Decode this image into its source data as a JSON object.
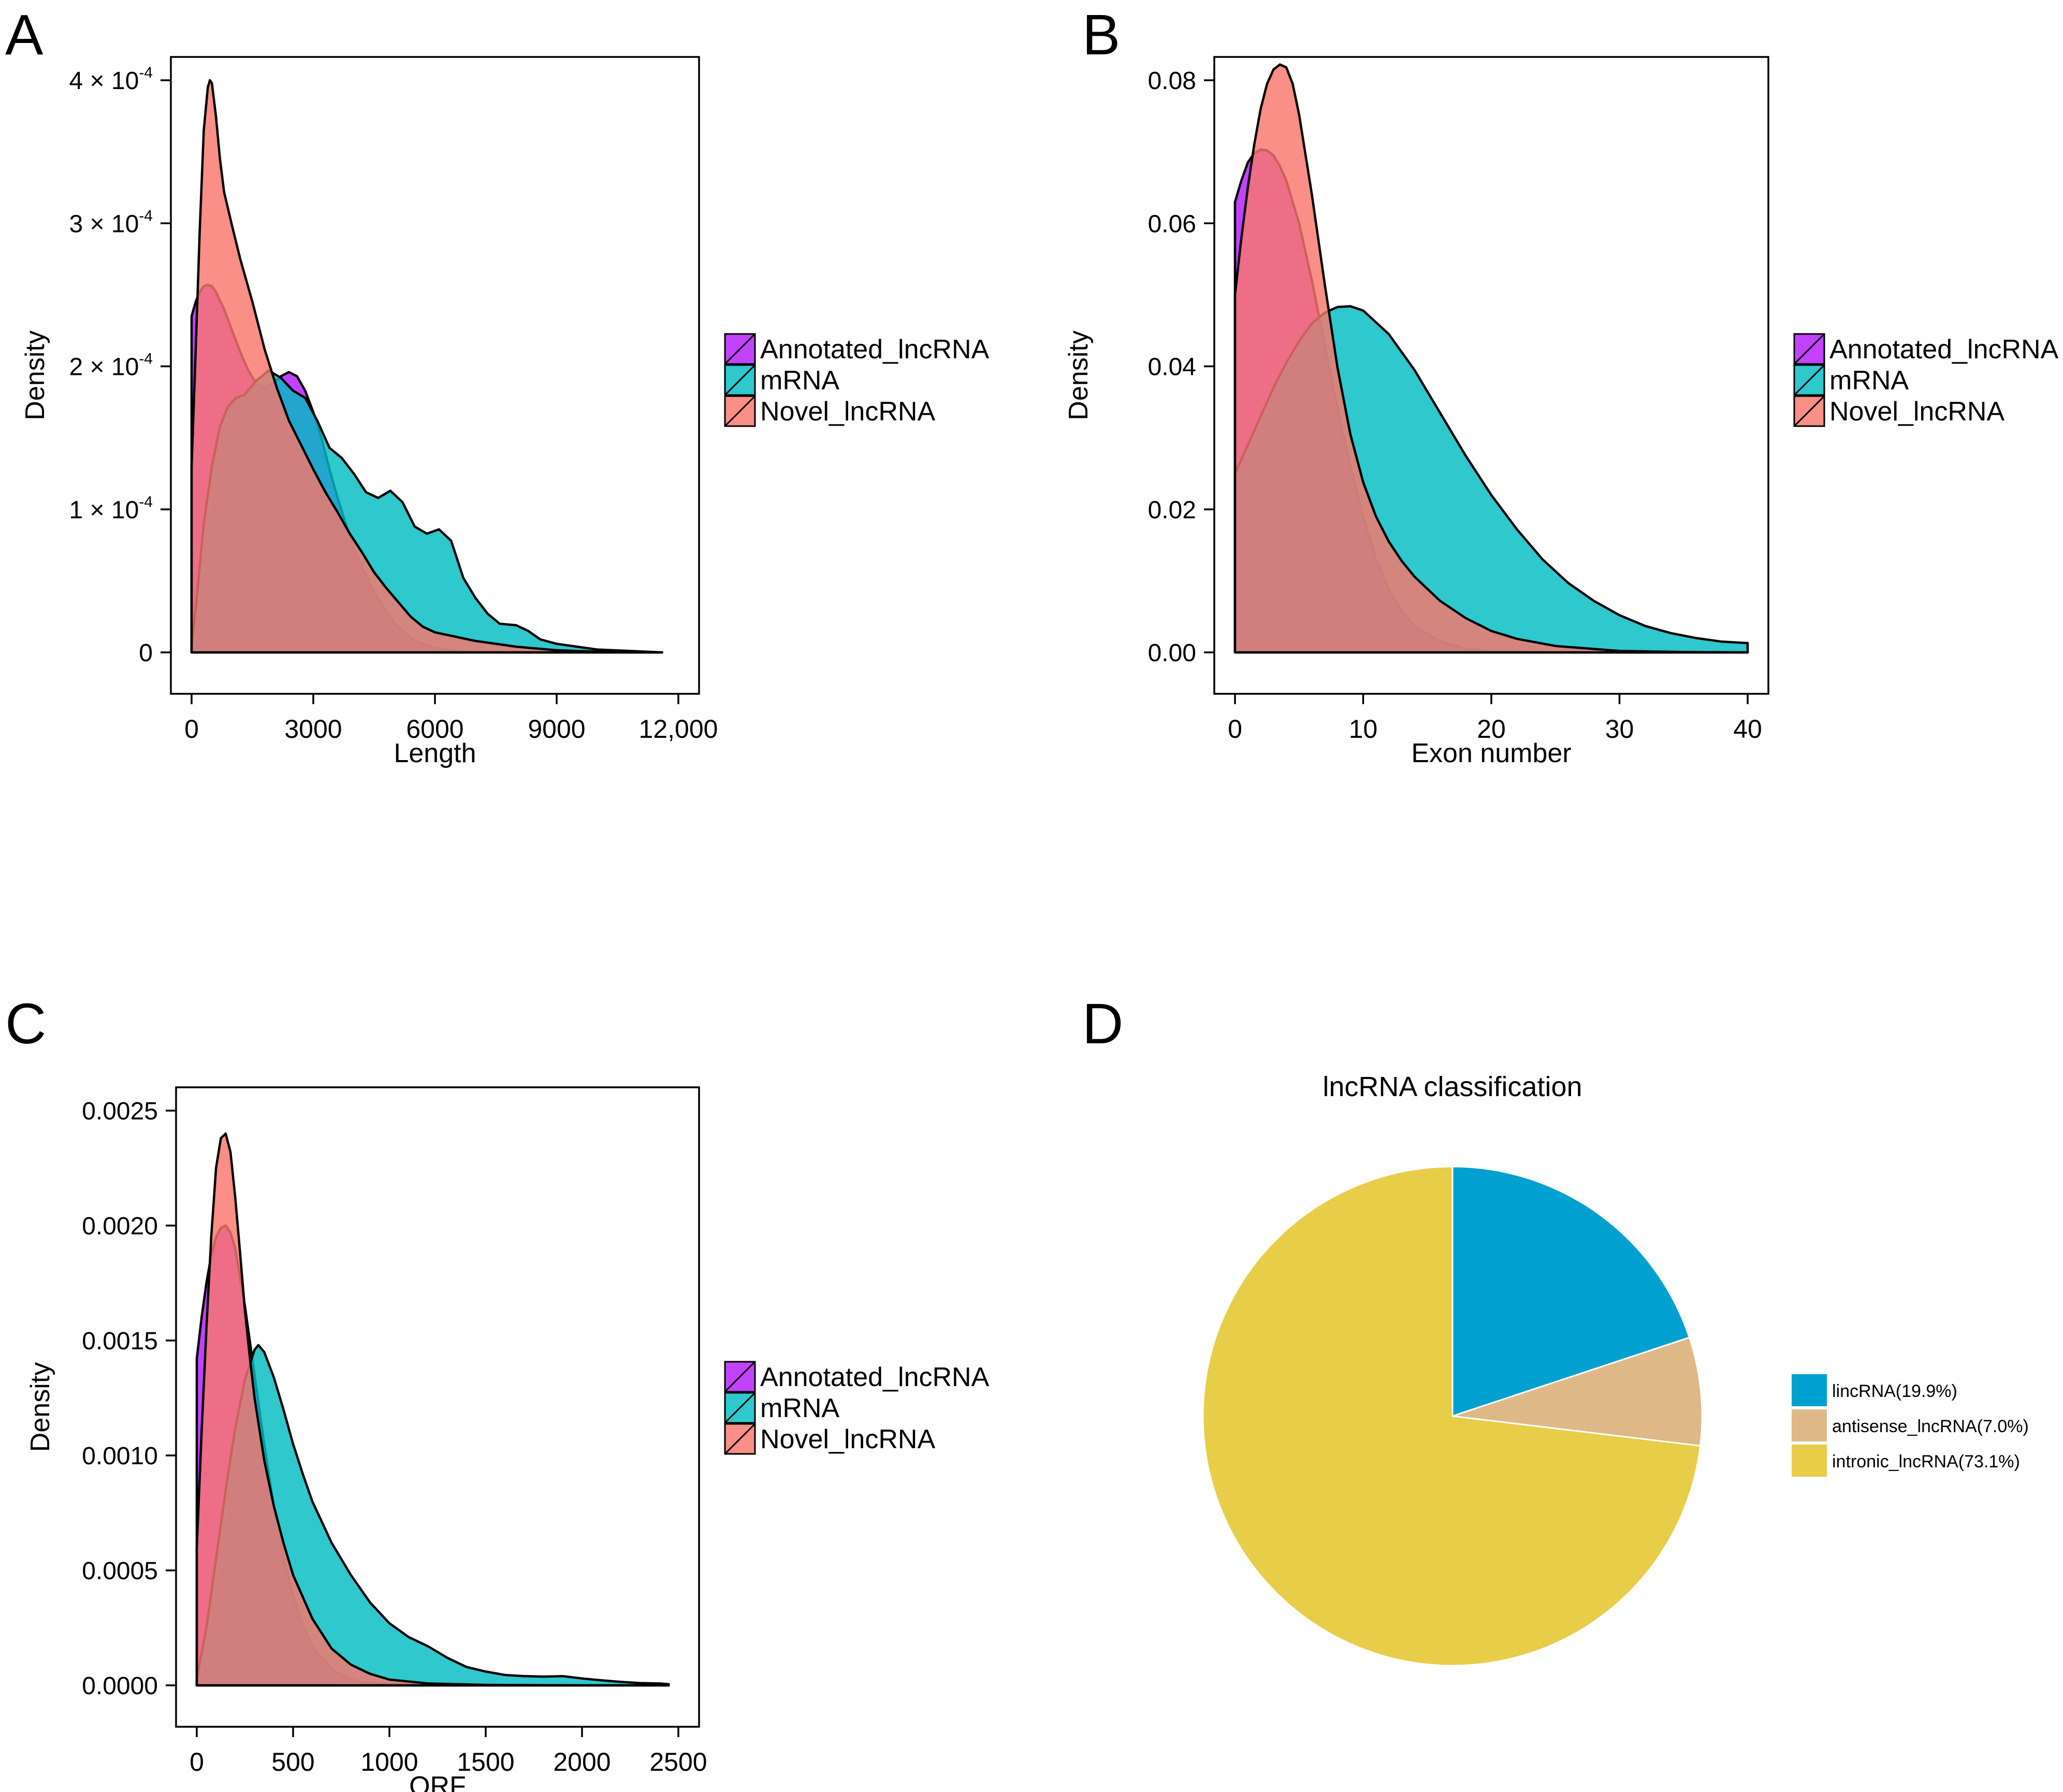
{
  "colors": {
    "annotated": "#B31AFF",
    "mrna": "#00BCC2",
    "novel": "#F8766D",
    "lincRNA": "#00A0D0",
    "antisense": "#DEB887",
    "intronic": "#E8CD48"
  },
  "chart_data": [
    {
      "panel_label": "A",
      "type": "area",
      "subtype": "density",
      "xlabel": "Length",
      "ylabel": "Density",
      "xlim": [
        0,
        12000
      ],
      "ylim": [
        0,
        0.0004
      ],
      "x_ticks": [
        0,
        3000,
        6000,
        9000,
        12000
      ],
      "x_tick_labels": [
        "0",
        "3000",
        "6000",
        "9000",
        "12,000"
      ],
      "y_ticks": [
        0,
        0.0001,
        0.0002,
        0.0003,
        0.0004
      ],
      "y_tick_labels": [
        {
          "mantissa": "0",
          "exp": ""
        },
        {
          "mantissa": "1 × 10",
          "exp": "-4"
        },
        {
          "mantissa": "2 × 10",
          "exp": "-4"
        },
        {
          "mantissa": "3 × 10",
          "exp": "-4"
        },
        {
          "mantissa": "4 × 10",
          "exp": "-4"
        }
      ],
      "legend": [
        "Annotated_lncRNA",
        "mRNA",
        "Novel_lncRNA"
      ],
      "series": [
        {
          "name": "Annotated_lncRNA",
          "x": [
            0,
            100,
            200,
            300,
            400,
            500,
            600,
            800,
            1000,
            1200,
            1400,
            1600,
            1800,
            2000,
            2200,
            2400,
            2600,
            2800,
            3000,
            3200,
            3400,
            3600,
            3800,
            4000,
            4500,
            5000,
            5500,
            6000,
            6500,
            7000,
            7500,
            8000,
            9000,
            10000,
            11600
          ],
          "y": [
            0.000235,
            0.000245,
            0.000252,
            0.000256,
            0.000257,
            0.000256,
            0.000252,
            0.00024,
            0.000225,
            0.00021,
            0.000197,
            0.000188,
            0.000185,
            0.000188,
            0.000193,
            0.000196,
            0.000193,
            0.000183,
            0.000168,
            0.00015,
            0.000128,
            0.000108,
            9e-05,
            7.2e-05,
            4.2e-05,
            2e-05,
            8e-06,
            3e-06,
            1e-06,
            5e-07,
            2e-07,
            1e-07,
            0,
            0,
            0
          ]
        },
        {
          "name": "mRNA",
          "x": [
            0,
            100,
            200,
            300,
            500,
            700,
            900,
            1100,
            1300,
            1600,
            1900,
            2200,
            2500,
            2800,
            3100,
            3400,
            3700,
            4000,
            4300,
            4600,
            4900,
            5200,
            5500,
            5800,
            6100,
            6400,
            6700,
            7000,
            7300,
            7600,
            8000,
            8300,
            8600,
            9000,
            9500,
            10000,
            11600
          ],
          "y": [
            5e-06,
            3e-05,
            6e-05,
            9e-05,
            0.00013,
            0.000158,
            0.000172,
            0.000178,
            0.00018,
            0.00019,
            0.000197,
            0.000192,
            0.000183,
            0.000178,
            0.000162,
            0.000143,
            0.000136,
            0.000125,
            0.000112,
            0.000108,
            0.000113,
            0.000105,
            8.8e-05,
            8.3e-05,
            8.6e-05,
            7.8e-05,
            5.2e-05,
            3.8e-05,
            2.7e-05,
            2e-05,
            1.9e-05,
            1.5e-05,
            9e-06,
            6e-06,
            4e-06,
            2e-06,
            0
          ]
        },
        {
          "name": "Novel_lncRNA",
          "x": [
            0,
            100,
            200,
            300,
            400,
            450,
            500,
            600,
            700,
            800,
            1000,
            1200,
            1500,
            1800,
            2100,
            2400,
            2700,
            3000,
            3300,
            3600,
            3900,
            4200,
            4500,
            4800,
            5100,
            5400,
            5700,
            6000,
            6500,
            7000,
            7500,
            8000,
            9000,
            10000,
            11600
          ],
          "y": [
            0.00013,
            0.00021,
            0.000295,
            0.000365,
            0.000395,
            0.0004,
            0.000398,
            0.000375,
            0.000345,
            0.000322,
            0.000298,
            0.000275,
            0.000245,
            0.000212,
            0.000185,
            0.000162,
            0.000145,
            0.000128,
            0.000112,
            9.8e-05,
            8.3e-05,
            7e-05,
            5.6e-05,
            4.5e-05,
            3.5e-05,
            2.5e-05,
            1.8e-05,
            1.4e-05,
            1.1e-05,
            8e-06,
            6e-06,
            4e-06,
            1.5e-06,
            5e-07,
            0
          ]
        }
      ]
    },
    {
      "panel_label": "B",
      "type": "area",
      "subtype": "density",
      "xlabel": "Exon number",
      "ylabel": "Density",
      "xlim": [
        0,
        40
      ],
      "ylim": [
        0,
        0.08
      ],
      "x_ticks": [
        0,
        10,
        20,
        30,
        40
      ],
      "x_tick_labels": [
        "0",
        "10",
        "20",
        "30",
        "40"
      ],
      "y_ticks": [
        0,
        0.02,
        0.04,
        0.06,
        0.08
      ],
      "y_tick_labels": [
        {
          "mantissa": "0.00",
          "exp": ""
        },
        {
          "mantissa": "0.02",
          "exp": ""
        },
        {
          "mantissa": "0.04",
          "exp": ""
        },
        {
          "mantissa": "0.06",
          "exp": ""
        },
        {
          "mantissa": "0.08",
          "exp": ""
        }
      ],
      "legend": [
        "Annotated_lncRNA",
        "mRNA",
        "Novel_lncRNA"
      ],
      "series": [
        {
          "name": "Annotated_lncRNA",
          "x": [
            0,
            0.5,
            1,
            1.5,
            2,
            2.5,
            3,
            3.5,
            4,
            5,
            6,
            7,
            8,
            9,
            10,
            11,
            12,
            13,
            14,
            16,
            18,
            20,
            24,
            30,
            40
          ],
          "y": [
            0.063,
            0.066,
            0.0685,
            0.0698,
            0.0703,
            0.0702,
            0.0695,
            0.068,
            0.066,
            0.06,
            0.052,
            0.043,
            0.034,
            0.026,
            0.019,
            0.013,
            0.0088,
            0.0058,
            0.0037,
            0.0015,
            0.0005,
            0.00015,
            0,
            0,
            0
          ]
        },
        {
          "name": "mRNA",
          "x": [
            0,
            1,
            2,
            3,
            4,
            5,
            6,
            7,
            8,
            9,
            10,
            12,
            14,
            16,
            18,
            20,
            22,
            24,
            26,
            28,
            30,
            32,
            34,
            36,
            38,
            40
          ],
          "y": [
            0.025,
            0.029,
            0.033,
            0.037,
            0.0405,
            0.0435,
            0.046,
            0.0475,
            0.0483,
            0.0484,
            0.0478,
            0.0445,
            0.0395,
            0.0335,
            0.0275,
            0.022,
            0.0172,
            0.013,
            0.0097,
            0.0072,
            0.0052,
            0.0037,
            0.0027,
            0.002,
            0.0015,
            0.0013
          ]
        },
        {
          "name": "Novel_lncRNA",
          "x": [
            0,
            0.5,
            1,
            1.5,
            2,
            2.5,
            3,
            3.5,
            4,
            4.5,
            5,
            6,
            7,
            8,
            9,
            10,
            11,
            12,
            13,
            14,
            16,
            18,
            20,
            22,
            25,
            30,
            35,
            40
          ],
          "y": [
            0.05,
            0.058,
            0.065,
            0.071,
            0.076,
            0.0795,
            0.0815,
            0.0822,
            0.0818,
            0.0795,
            0.0752,
            0.064,
            0.0515,
            0.0398,
            0.0305,
            0.0238,
            0.019,
            0.0155,
            0.0128,
            0.0106,
            0.0072,
            0.0048,
            0.003,
            0.0019,
            0.0009,
            0.0002,
            5e-05,
            0
          ]
        }
      ]
    },
    {
      "panel_label": "C",
      "type": "area",
      "subtype": "density",
      "xlabel": "ORF",
      "ylabel": "Density",
      "xlim": [
        0,
        2500
      ],
      "ylim": [
        0,
        0.0025
      ],
      "x_ticks": [
        0,
        500,
        1000,
        1500,
        2000,
        2500
      ],
      "x_tick_labels": [
        "0",
        "500",
        "1000",
        "1500",
        "2000",
        "2500"
      ],
      "y_ticks": [
        0,
        0.0005,
        0.001,
        0.0015,
        0.002,
        0.0025
      ],
      "y_tick_labels": [
        {
          "mantissa": "0.0000",
          "exp": ""
        },
        {
          "mantissa": "0.0005",
          "exp": ""
        },
        {
          "mantissa": "0.0010",
          "exp": ""
        },
        {
          "mantissa": "0.0015",
          "exp": ""
        },
        {
          "mantissa": "0.0020",
          "exp": ""
        },
        {
          "mantissa": "0.0025",
          "exp": ""
        }
      ],
      "legend": [
        "Annotated_lncRNA",
        "mRNA",
        "Novel_lncRNA"
      ],
      "series": [
        {
          "name": "Annotated_lncRNA",
          "x": [
            0,
            25,
            50,
            75,
            100,
            125,
            150,
            175,
            200,
            250,
            300,
            350,
            400,
            450,
            500,
            550,
            600,
            700,
            800,
            900,
            1000,
            1200,
            1500,
            2000,
            2450
          ],
          "y": [
            0.00142,
            0.0016,
            0.00175,
            0.00187,
            0.00195,
            0.00199,
            0.002,
            0.00197,
            0.0019,
            0.00165,
            0.00135,
            0.00105,
            0.00078,
            0.00056,
            0.00039,
            0.00026,
            0.00017,
            7e-05,
            2.5e-05,
            1e-05,
            3e-06,
            0,
            0,
            0,
            0
          ]
        },
        {
          "name": "mRNA",
          "x": [
            0,
            50,
            100,
            150,
            200,
            250,
            300,
            320,
            350,
            400,
            450,
            500,
            550,
            600,
            700,
            800,
            900,
            1000,
            1100,
            1200,
            1300,
            1400,
            1500,
            1600,
            1700,
            1800,
            1900,
            2000,
            2100,
            2200,
            2300,
            2400,
            2450
          ],
          "y": [
            3e-05,
            0.00025,
            0.00055,
            0.00085,
            0.00112,
            0.00133,
            0.00146,
            0.00148,
            0.00145,
            0.00134,
            0.0012,
            0.00105,
            0.00092,
            0.0008,
            0.00062,
            0.00048,
            0.00036,
            0.00027,
            0.00021,
            0.00017,
            0.00012,
            8e-05,
            6e-05,
            4.5e-05,
            4e-05,
            3.8e-05,
            4e-05,
            3e-05,
            2.2e-05,
            1.5e-05,
            1e-05,
            8e-06,
            5e-06
          ]
        },
        {
          "name": "Novel_lncRNA",
          "x": [
            0,
            25,
            50,
            75,
            100,
            125,
            150,
            175,
            200,
            225,
            250,
            275,
            300,
            350,
            400,
            450,
            500,
            600,
            700,
            800,
            900,
            1000,
            1200,
            1500,
            2000,
            2450
          ],
          "y": [
            0.0006,
            0.0011,
            0.00155,
            0.00195,
            0.00225,
            0.00238,
            0.0024,
            0.00232,
            0.00212,
            0.00188,
            0.00163,
            0.00143,
            0.00125,
            0.00098,
            0.00078,
            0.00062,
            0.00048,
            0.00029,
            0.00016,
            9e-05,
            5e-05,
            2.5e-05,
            8e-06,
            2e-06,
            0,
            0
          ]
        }
      ]
    },
    {
      "panel_label": "D",
      "type": "pie",
      "title": "lncRNA classification",
      "slices": [
        {
          "label": "lincRNA(19.9%)",
          "value": 19.9
        },
        {
          "label": "antisense_lncRNA(7.0%)",
          "value": 7.0
        },
        {
          "label": "intronic_lncRNA(73.1%)",
          "value": 73.1
        }
      ]
    }
  ]
}
